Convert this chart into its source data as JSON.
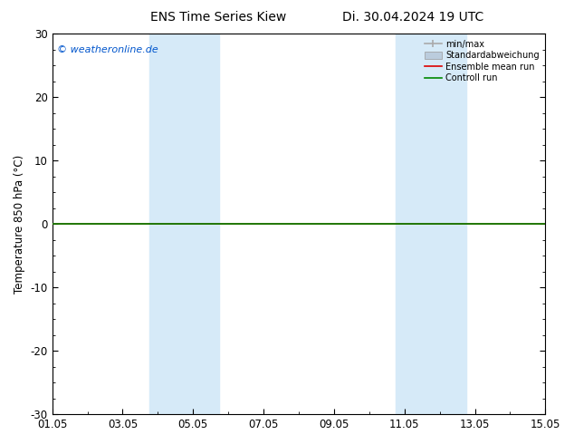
{
  "title_left": "ENS Time Series Kiew",
  "title_right": "Di. 30.04.2024 19 UTC",
  "ylabel": "Temperature 850 hPa (°C)",
  "xlabel_ticks": [
    "01.05",
    "03.05",
    "05.05",
    "07.05",
    "09.05",
    "11.05",
    "13.05",
    "15.05"
  ],
  "xlim": [
    0,
    14
  ],
  "ylim": [
    -30,
    30
  ],
  "yticks": [
    -30,
    -20,
    -10,
    0,
    10,
    20,
    30
  ],
  "background_color": "#ffffff",
  "plot_bg_color": "#ffffff",
  "watermark": "© weatheronline.de",
  "watermark_color": "#0055cc",
  "shaded_bands": [
    {
      "x_start": 2.75,
      "x_end": 3.75,
      "color": "#d6eaf8"
    },
    {
      "x_start": 3.75,
      "x_end": 4.75,
      "color": "#d6eaf8"
    },
    {
      "x_start": 9.75,
      "x_end": 10.75,
      "color": "#d6eaf8"
    },
    {
      "x_start": 10.75,
      "x_end": 11.75,
      "color": "#d6eaf8"
    }
  ],
  "legend_items": [
    {
      "label": "min/max",
      "color": "#aaaaaa",
      "lw": 1.2
    },
    {
      "label": "Standardabweichung",
      "color": "#bbccdd",
      "lw": 7
    },
    {
      "label": "Ensemble mean run",
      "color": "#dd0000",
      "lw": 1.2
    },
    {
      "label": "Controll run",
      "color": "#008800",
      "lw": 1.2
    }
  ],
  "zero_line_green_color": "#008800",
  "zero_line_red_color": "#dd0000",
  "tick_label_fontsize": 8.5,
  "title_fontsize": 10,
  "ylabel_fontsize": 8.5,
  "watermark_fontsize": 8
}
